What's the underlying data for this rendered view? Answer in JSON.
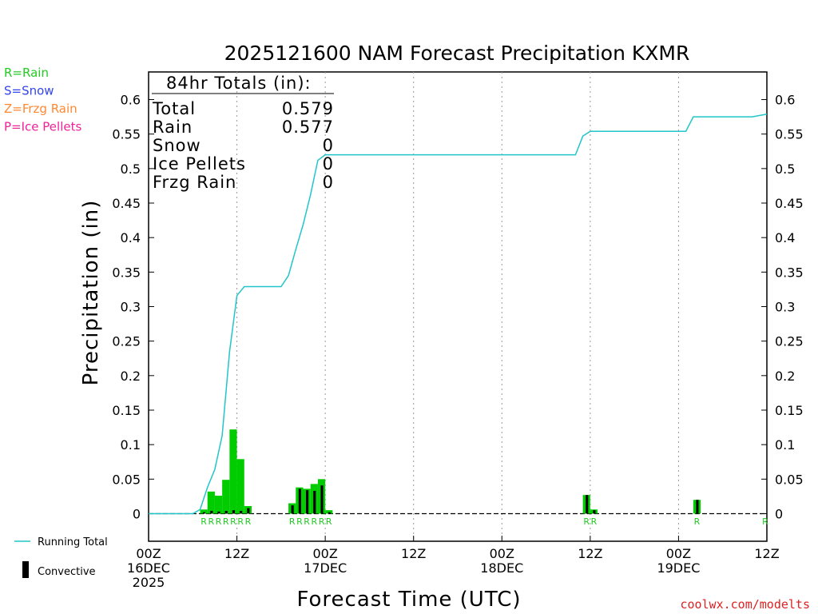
{
  "chart_data": {
    "type": "bar",
    "title": "2025121600 NAM Forecast Precipitation KXMR",
    "ylabel": "Precipitation (in)",
    "xlabel": "Forecast Time (UTC)",
    "ylim": [
      -0.04,
      0.64
    ],
    "xlim": [
      0,
      84
    ],
    "yticks": [
      0,
      0.05,
      0.1,
      0.15,
      0.2,
      0.25,
      0.3,
      0.35,
      0.4,
      0.45,
      0.5,
      0.55,
      0.6
    ],
    "ytick_labels": [
      "0",
      "0.05",
      "0.1",
      "0.15",
      "0.2",
      "0.25",
      "0.3",
      "0.35",
      "0.4",
      "0.45",
      "0.5",
      "0.55",
      "0.6"
    ],
    "xticks": [
      {
        "hour": 0,
        "lines": [
          "00Z",
          "16DEC",
          "2025"
        ]
      },
      {
        "hour": 12,
        "lines": [
          "12Z"
        ]
      },
      {
        "hour": 24,
        "lines": [
          "00Z",
          "17DEC"
        ]
      },
      {
        "hour": 36,
        "lines": [
          "12Z"
        ]
      },
      {
        "hour": 48,
        "lines": [
          "00Z",
          "18DEC"
        ]
      },
      {
        "hour": 60,
        "lines": [
          "12Z"
        ]
      },
      {
        "hour": 72,
        "lines": [
          "00Z",
          "19DEC"
        ]
      },
      {
        "hour": 84,
        "lines": [
          "12Z"
        ]
      }
    ],
    "gridlines_hours": [
      12,
      24,
      36,
      48,
      60,
      72
    ],
    "hourly_precip": [
      {
        "hour": 7,
        "value": 0.006,
        "convective": 0.002
      },
      {
        "hour": 8,
        "value": 0.032,
        "convective": 0.004
      },
      {
        "hour": 9,
        "value": 0.026,
        "convective": 0.003
      },
      {
        "hour": 10,
        "value": 0.049,
        "convective": 0.004
      },
      {
        "hour": 11,
        "value": 0.122,
        "convective": 0.005
      },
      {
        "hour": 12,
        "value": 0.079,
        "convective": 0.004
      },
      {
        "hour": 13,
        "value": 0.011,
        "convective": 0.008
      },
      {
        "hour": 19,
        "value": 0.015,
        "convective": 0.012
      },
      {
        "hour": 20,
        "value": 0.038,
        "convective": 0.036
      },
      {
        "hour": 21,
        "value": 0.036,
        "convective": 0.034
      },
      {
        "hour": 22,
        "value": 0.043,
        "convective": 0.033
      },
      {
        "hour": 23,
        "value": 0.05,
        "convective": 0.041
      },
      {
        "hour": 24,
        "value": 0.005,
        "convective": 0.002
      },
      {
        "hour": 59,
        "value": 0.027,
        "convective": 0.027
      },
      {
        "hour": 60,
        "value": 0.006,
        "convective": 0.005
      },
      {
        "hour": 74,
        "value": 0.02,
        "convective": 0.02
      }
    ],
    "running_total": [
      {
        "hour": 0,
        "value": 0
      },
      {
        "hour": 6,
        "value": 0
      },
      {
        "hour": 7,
        "value": 0.006
      },
      {
        "hour": 8,
        "value": 0.038
      },
      {
        "hour": 9,
        "value": 0.064
      },
      {
        "hour": 10,
        "value": 0.113
      },
      {
        "hour": 11,
        "value": 0.235
      },
      {
        "hour": 12,
        "value": 0.316
      },
      {
        "hour": 13,
        "value": 0.329
      },
      {
        "hour": 18,
        "value": 0.329
      },
      {
        "hour": 19,
        "value": 0.345
      },
      {
        "hour": 20,
        "value": 0.383
      },
      {
        "hour": 21,
        "value": 0.419
      },
      {
        "hour": 22,
        "value": 0.462
      },
      {
        "hour": 23,
        "value": 0.512
      },
      {
        "hour": 24,
        "value": 0.52
      },
      {
        "hour": 58,
        "value": 0.52
      },
      {
        "hour": 59,
        "value": 0.547
      },
      {
        "hour": 60,
        "value": 0.554
      },
      {
        "hour": 73,
        "value": 0.554
      },
      {
        "hour": 74,
        "value": 0.575
      },
      {
        "hour": 82,
        "value": 0.575
      },
      {
        "hour": 84,
        "value": 0.579
      }
    ],
    "precip_type_labels": [
      {
        "hour": 7.5,
        "text": "R"
      },
      {
        "hour": 8.5,
        "text": "R"
      },
      {
        "hour": 9.5,
        "text": "R"
      },
      {
        "hour": 10.5,
        "text": "R"
      },
      {
        "hour": 11.5,
        "text": "R"
      },
      {
        "hour": 12.5,
        "text": "R"
      },
      {
        "hour": 13.5,
        "text": "R"
      },
      {
        "hour": 19.5,
        "text": "R"
      },
      {
        "hour": 20.5,
        "text": "R"
      },
      {
        "hour": 21.5,
        "text": "R"
      },
      {
        "hour": 22.5,
        "text": "R"
      },
      {
        "hour": 23.5,
        "text": "R"
      },
      {
        "hour": 24.5,
        "text": "R"
      },
      {
        "hour": 59.5,
        "text": "R"
      },
      {
        "hour": 60.5,
        "text": "R"
      },
      {
        "hour": 74.5,
        "text": "R"
      },
      {
        "hour": 84,
        "text": "R"
      }
    ],
    "totals_box": {
      "header": "84hr Totals (in):",
      "rows": [
        {
          "label": "Total",
          "value": "0.579"
        },
        {
          "label": "Rain",
          "value": "0.577"
        },
        {
          "label": "Snow",
          "value": "0"
        },
        {
          "label": "Ice Pellets",
          "value": "0"
        },
        {
          "label": "Frzg Rain",
          "value": "0"
        }
      ]
    },
    "ptype_legend": [
      {
        "text": "R=Rain",
        "color": "#22cc22"
      },
      {
        "text": "S=Snow",
        "color": "#3344ee"
      },
      {
        "text": "Z=Frzg Rain",
        "color": "#ff8833"
      },
      {
        "text": "P=Ice Pellets",
        "color": "#ee2299"
      }
    ],
    "series_legend": {
      "running_total": "Running Total",
      "convective": "Convective"
    },
    "colors": {
      "precip_bar": "#00cc00",
      "convective_bar": "#000000",
      "running_total": "#22c5c9"
    },
    "credit": "coolwx.com/modelts"
  }
}
